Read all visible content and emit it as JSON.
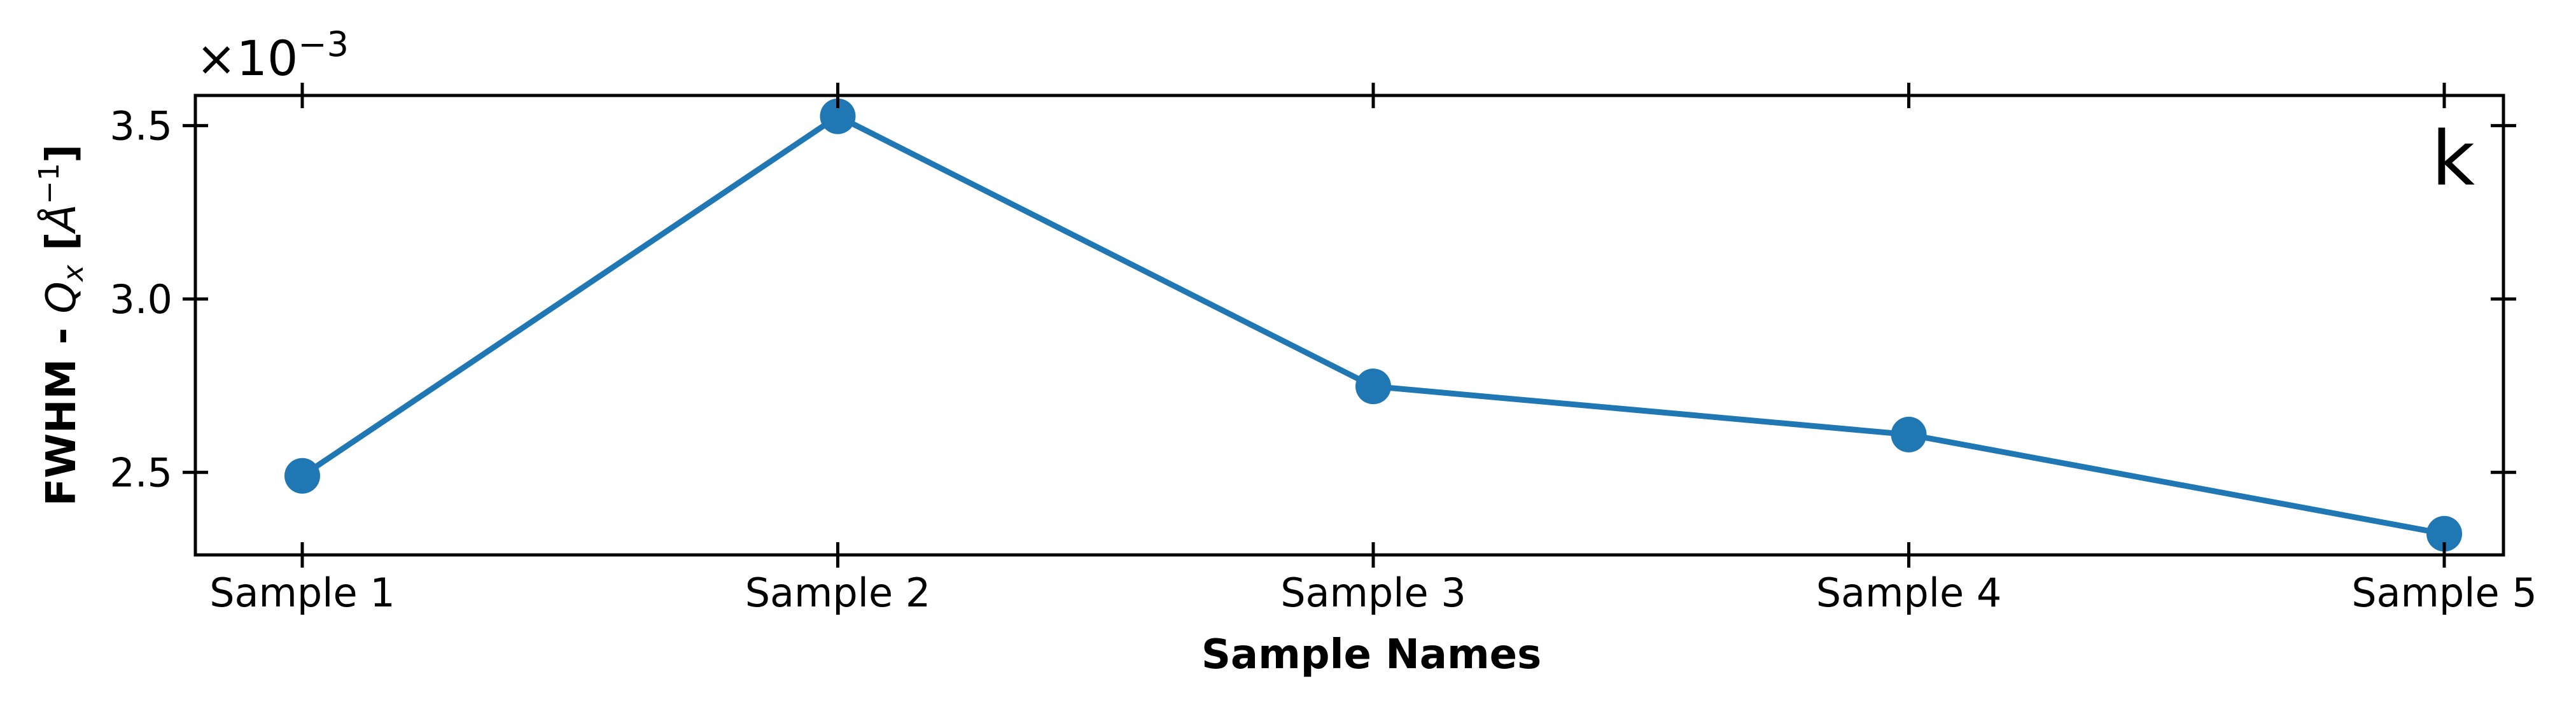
{
  "chart_data": {
    "type": "line",
    "categories": [
      "Sample 1",
      "Sample 2",
      "Sample 3",
      "Sample 4",
      "Sample 5"
    ],
    "series": [
      {
        "values": [
          0.00249,
          0.003527,
          0.002748,
          0.002609,
          0.002323
        ]
      }
    ],
    "xlabel": "Sample Names",
    "ylabel": "FWHM - Qx [Å⁻¹]",
    "ylabel_parts": {
      "prefix": "FWHM - ",
      "var": "Q",
      "sub": "x",
      "unit_open": " [",
      "unit": "Å",
      "sup": "−1",
      "unit_close": "]"
    },
    "y_multiplier": {
      "base": "×10",
      "exp": "−3"
    },
    "ylim": [
      0.002262,
      0.003587
    ],
    "yticks": [
      0.0025,
      0.003,
      0.0035
    ],
    "ytick_labels": [
      "2.5",
      "3.0",
      "3.5"
    ],
    "panel_label": "k",
    "grid": false,
    "color": "#1f77b4",
    "marker": "circle"
  }
}
